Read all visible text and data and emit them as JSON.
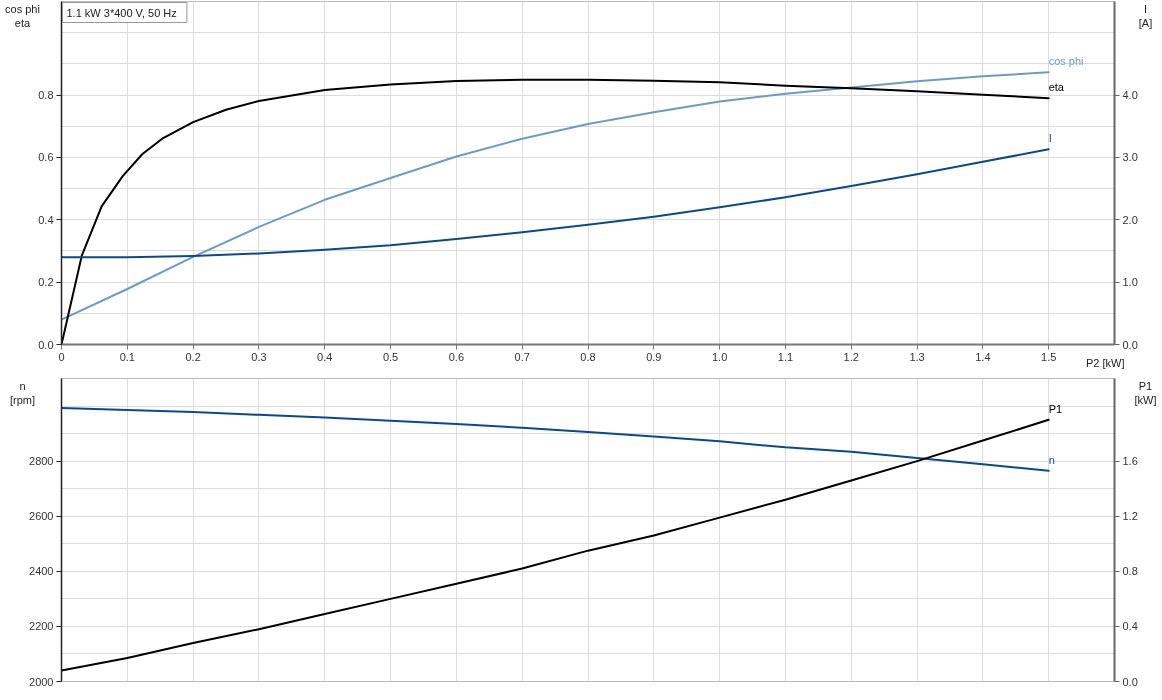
{
  "chart_data": [
    {
      "type": "line",
      "title": "1.1 kW   3*400 V, 50 Hz",
      "xlabel": "P2 [kW]",
      "ylabel": "cos phi\neta",
      "y2label": "I\n[A]",
      "x": [
        0,
        0.1,
        0.2,
        0.3,
        0.4,
        0.5,
        0.6,
        0.7,
        0.8,
        0.9,
        1.0,
        1.1,
        1.2,
        1.3,
        1.4,
        1.5
      ],
      "xlim": [
        0,
        1.6
      ],
      "xticks": [
        0,
        0.1,
        0.2,
        0.3,
        0.4,
        0.5,
        0.6,
        0.7,
        0.8,
        0.9,
        {
          "value": 1,
          "label": "1.0"
        },
        1.1,
        1.2,
        1.3,
        1.4,
        1.5
      ],
      "ylim": [
        0,
        1.1
      ],
      "yticks": [
        {
          "value": 0,
          "label": "0.0"
        },
        {
          "value": 0.1,
          "label": null
        },
        0.2,
        {
          "value": 0.3,
          "label": null
        },
        0.4,
        {
          "value": 0.5,
          "label": null
        },
        0.6,
        {
          "value": 0.7,
          "label": null
        },
        0.8,
        {
          "value": 0.9,
          "label": null
        },
        {
          "value": 1,
          "label": null
        }
      ],
      "y2lim": [
        0,
        5.5
      ],
      "y2ticks": [
        {
          "value": 0,
          "label": "0.0"
        },
        {
          "value": 1,
          "label": "1.0"
        },
        {
          "value": 2,
          "label": "2.0"
        },
        {
          "value": 3,
          "label": "3.0"
        },
        {
          "value": 4,
          "label": "4.0"
        }
      ],
      "grid": true,
      "series": [
        {
          "name": "cos phi",
          "color": "#6e9bc5",
          "values": [
            0.08,
            0.178,
            0.281,
            0.377,
            0.464,
            0.534,
            0.603,
            0.66,
            0.707,
            0.745,
            0.779,
            0.804,
            0.824,
            0.844,
            0.86,
            0.873
          ]
        },
        {
          "name": "eta",
          "color": "#000000",
          "x": [
            0,
            0.031,
            0.061,
            0.093,
            0.123,
            0.153,
            0.2,
            0.25,
            0.3,
            0.4,
            0.5,
            0.6,
            0.7,
            0.8,
            0.9,
            1.0,
            1.1,
            1.2,
            1.3,
            1.4,
            1.5
          ],
          "values": [
            0,
            0.286,
            0.443,
            0.54,
            0.611,
            0.66,
            0.713,
            0.753,
            0.781,
            0.816,
            0.834,
            0.845,
            0.849,
            0.849,
            0.846,
            0.841,
            0.83,
            0.822,
            0.812,
            0.801,
            0.79
          ]
        },
        {
          "name": "I",
          "color": "#0a4a8c",
          "axis": "y2",
          "values": [
            1.4,
            1.4,
            1.42,
            1.46,
            1.52,
            1.59,
            1.69,
            1.8,
            1.92,
            2.05,
            2.2,
            2.36,
            2.54,
            2.73,
            2.93,
            3.13
          ]
        }
      ]
    },
    {
      "type": "line",
      "ylabel": "n\n[rpm]",
      "y2label": "P1\n[kW]",
      "x": [
        0,
        0.1,
        0.2,
        0.3,
        0.4,
        0.5,
        0.6,
        0.7,
        0.8,
        0.9,
        1.0,
        1.1,
        1.2,
        1.3,
        1.4,
        1.5
      ],
      "xlim": [
        0,
        1.6
      ],
      "xticks": [
        0,
        0.1,
        0.2,
        0.3,
        0.4,
        0.5,
        0.6,
        0.7,
        0.8,
        0.9,
        1.0,
        1.1,
        1.2,
        1.3,
        1.4,
        1.5
      ],
      "tick_labels": "y",
      "ylim": [
        2000,
        3100
      ],
      "yticks": [
        2000,
        {
          "value": 2100,
          "label": null
        },
        2200,
        {
          "value": 2300,
          "label": null
        },
        2400,
        {
          "value": 2500,
          "label": null
        },
        2600,
        {
          "value": 2700,
          "label": null
        },
        2800,
        {
          "value": 2900,
          "label": null
        },
        {
          "value": 3000,
          "label": null
        }
      ],
      "y2lim": [
        0,
        2.2
      ],
      "y2ticks": [
        {
          "value": 0,
          "label": "0.0"
        },
        0.4,
        0.8,
        1.2,
        1.6
      ],
      "grid": true,
      "series": [
        {
          "name": "n",
          "color": "#0a4a8c",
          "values": [
            2993,
            2986,
            2978,
            2968,
            2958,
            2947,
            2935,
            2921,
            2906,
            2889,
            2872,
            2850,
            2834,
            2811,
            2789,
            2765
          ]
        },
        {
          "name": "P1",
          "color": "#000000",
          "axis": "y2",
          "values": [
            0.08,
            0.17,
            0.28,
            0.38,
            0.49,
            0.6,
            0.71,
            0.82,
            0.95,
            1.06,
            1.19,
            1.32,
            1.46,
            1.6,
            1.75,
            1.9
          ]
        }
      ]
    }
  ]
}
